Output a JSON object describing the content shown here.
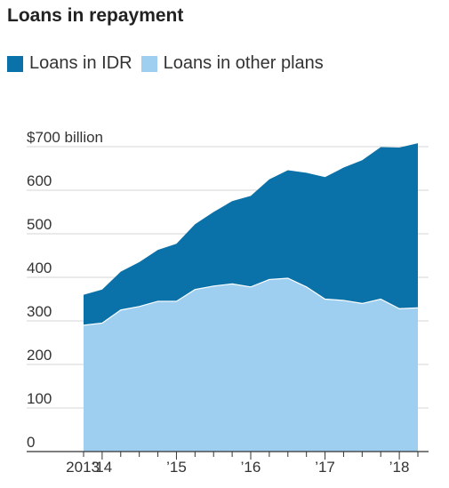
{
  "chart_data": {
    "type": "area",
    "stacked": true,
    "title": "Loans in repayment",
    "unit_label": "$700 billion",
    "y_ticks": [
      0,
      100,
      200,
      300,
      400,
      500,
      600,
      700
    ],
    "y_tick_labels": [
      "0",
      "100",
      "200",
      "300",
      "400",
      "500",
      "600",
      "$700 billion"
    ],
    "ylim": [
      0,
      700
    ],
    "x_ticks": [
      2013.75,
      2014,
      2015,
      2016,
      2017,
      2018
    ],
    "x_tick_labels": [
      "2013",
      "’14",
      "’15",
      "’16",
      "’17",
      "’18"
    ],
    "xlim": [
      2013.75,
      2018.25
    ],
    "grid": true,
    "legend_position": "top-left",
    "series": [
      {
        "name": "Loans in IDR",
        "color": "#0a72a8",
        "values": [
          70,
          77,
          88,
          102,
          118,
          132,
          150,
          170,
          190,
          209,
          230,
          248,
          262,
          280,
          305,
          329,
          349,
          370,
          378
        ]
      },
      {
        "name": "Loans in other plans",
        "color": "#9fcff0",
        "values": [
          290,
          295,
          325,
          333,
          345,
          345,
          372,
          380,
          385,
          378,
          395,
          398,
          378,
          350,
          347,
          340,
          350,
          328,
          330
        ]
      }
    ],
    "x": [
      2013.75,
      2014,
      2014.25,
      2014.5,
      2014.75,
      2015,
      2015.25,
      2015.5,
      2015.75,
      2016,
      2016.25,
      2016.5,
      2016.75,
      2017,
      2017.25,
      2017.5,
      2017.75,
      2018,
      2018.25
    ]
  }
}
